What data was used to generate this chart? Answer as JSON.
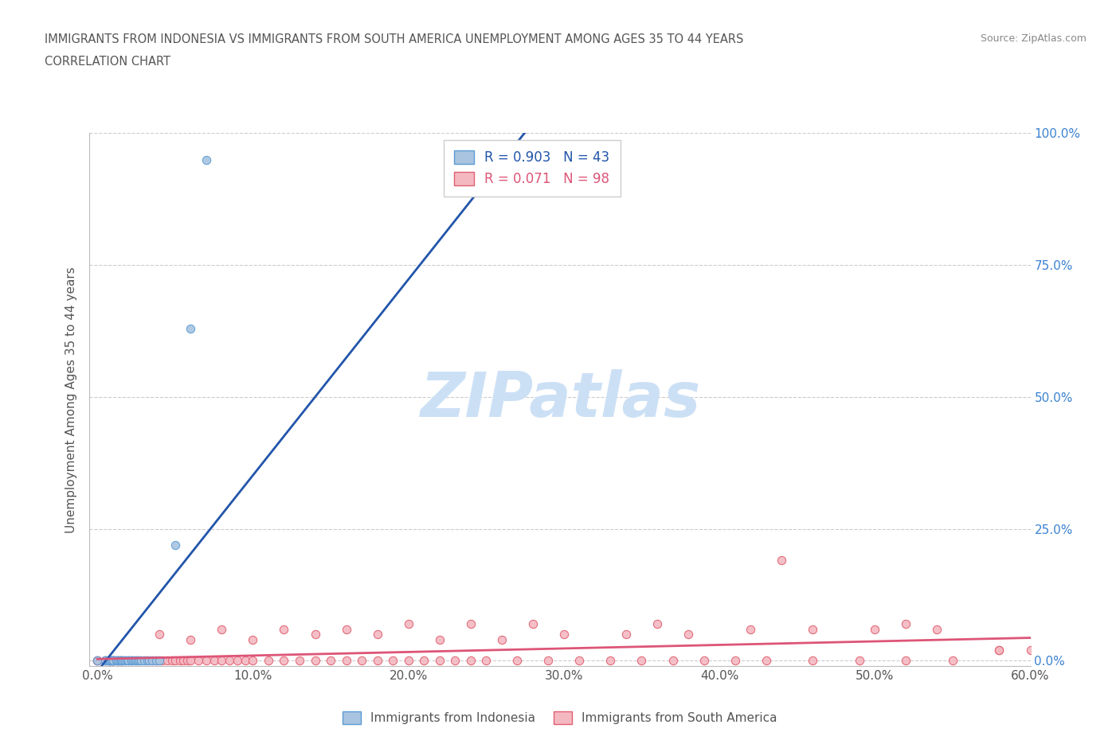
{
  "title_line1": "IMMIGRANTS FROM INDONESIA VS IMMIGRANTS FROM SOUTH AMERICA UNEMPLOYMENT AMONG AGES 35 TO 44 YEARS",
  "title_line2": "CORRELATION CHART",
  "source_text": "Source: ZipAtlas.com",
  "ylabel": "Unemployment Among Ages 35 to 44 years",
  "xlim": [
    -0.005,
    0.6
  ],
  "ylim": [
    -0.01,
    1.0
  ],
  "xticks": [
    0.0,
    0.1,
    0.2,
    0.3,
    0.4,
    0.5,
    0.6
  ],
  "xticklabels": [
    "0.0%",
    "10.0%",
    "20.0%",
    "30.0%",
    "40.0%",
    "50.0%",
    "60.0%"
  ],
  "yticks": [
    0.0,
    0.25,
    0.5,
    0.75,
    1.0
  ],
  "yticklabels": [
    "0.0%",
    "25.0%",
    "50.0%",
    "75.0%",
    "100.0%"
  ],
  "indonesia_color": "#a8c4e0",
  "indonesia_edge": "#5b9bd5",
  "south_america_color": "#f4b8c1",
  "south_america_edge": "#e06070",
  "indonesia_R": 0.903,
  "indonesia_N": 43,
  "south_america_R": 0.071,
  "south_america_N": 98,
  "line_indonesia_color": "#2255aa",
  "line_south_america_color": "#dd5577",
  "watermark": "ZIPatlas",
  "watermark_color": "#cce0f5",
  "indonesia_x": [
    0.0,
    0.005,
    0.005,
    0.007,
    0.007,
    0.008,
    0.008,
    0.008,
    0.009,
    0.009,
    0.01,
    0.01,
    0.01,
    0.012,
    0.012,
    0.013,
    0.013,
    0.014,
    0.015,
    0.015,
    0.016,
    0.017,
    0.018,
    0.019,
    0.02,
    0.02,
    0.022,
    0.022,
    0.023,
    0.024,
    0.025,
    0.026,
    0.027,
    0.028,
    0.03,
    0.032,
    0.033,
    0.035,
    0.038,
    0.04,
    0.05,
    0.06,
    0.07
  ],
  "indonesia_y": [
    0.0,
    0.0,
    0.0,
    0.0,
    0.0,
    0.0,
    0.0,
    0.0,
    0.0,
    0.0,
    0.0,
    0.0,
    0.0,
    0.0,
    0.0,
    0.0,
    0.0,
    0.0,
    0.0,
    0.0,
    0.0,
    0.0,
    0.0,
    0.0,
    0.0,
    0.0,
    0.0,
    0.0,
    0.0,
    0.0,
    0.0,
    0.0,
    0.0,
    0.0,
    0.0,
    0.0,
    0.0,
    0.0,
    0.0,
    0.0,
    0.22,
    0.63,
    0.95
  ],
  "south_america_x": [
    0.0,
    0.0,
    0.0,
    0.005,
    0.005,
    0.007,
    0.007,
    0.008,
    0.008,
    0.009,
    0.01,
    0.01,
    0.01,
    0.012,
    0.013,
    0.014,
    0.015,
    0.016,
    0.018,
    0.02,
    0.022,
    0.025,
    0.027,
    0.03,
    0.032,
    0.035,
    0.038,
    0.04,
    0.042,
    0.045,
    0.048,
    0.05,
    0.053,
    0.055,
    0.058,
    0.06,
    0.065,
    0.07,
    0.075,
    0.08,
    0.085,
    0.09,
    0.095,
    0.1,
    0.11,
    0.12,
    0.13,
    0.14,
    0.15,
    0.16,
    0.17,
    0.18,
    0.19,
    0.2,
    0.21,
    0.22,
    0.23,
    0.24,
    0.25,
    0.27,
    0.29,
    0.31,
    0.33,
    0.35,
    0.37,
    0.39,
    0.41,
    0.43,
    0.46,
    0.49,
    0.52,
    0.55,
    0.58,
    0.06,
    0.1,
    0.14,
    0.18,
    0.22,
    0.26,
    0.3,
    0.34,
    0.38,
    0.42,
    0.46,
    0.5,
    0.54,
    0.58,
    0.04,
    0.08,
    0.12,
    0.16,
    0.2,
    0.24,
    0.28,
    0.36,
    0.44,
    0.52,
    0.6
  ],
  "south_america_y": [
    0.0,
    0.0,
    0.0,
    0.0,
    0.0,
    0.0,
    0.0,
    0.0,
    0.0,
    0.0,
    0.0,
    0.0,
    0.0,
    0.0,
    0.0,
    0.0,
    0.0,
    0.0,
    0.0,
    0.0,
    0.0,
    0.0,
    0.0,
    0.0,
    0.0,
    0.0,
    0.0,
    0.0,
    0.0,
    0.0,
    0.0,
    0.0,
    0.0,
    0.0,
    0.0,
    0.0,
    0.0,
    0.0,
    0.0,
    0.0,
    0.0,
    0.0,
    0.0,
    0.0,
    0.0,
    0.0,
    0.0,
    0.0,
    0.0,
    0.0,
    0.0,
    0.0,
    0.0,
    0.0,
    0.0,
    0.0,
    0.0,
    0.0,
    0.0,
    0.0,
    0.0,
    0.0,
    0.0,
    0.0,
    0.0,
    0.0,
    0.0,
    0.0,
    0.0,
    0.0,
    0.0,
    0.0,
    0.02,
    0.04,
    0.04,
    0.05,
    0.05,
    0.04,
    0.04,
    0.05,
    0.05,
    0.05,
    0.06,
    0.06,
    0.06,
    0.06,
    0.02,
    0.05,
    0.06,
    0.06,
    0.06,
    0.07,
    0.07,
    0.07,
    0.07,
    0.19,
    0.07,
    0.02
  ]
}
